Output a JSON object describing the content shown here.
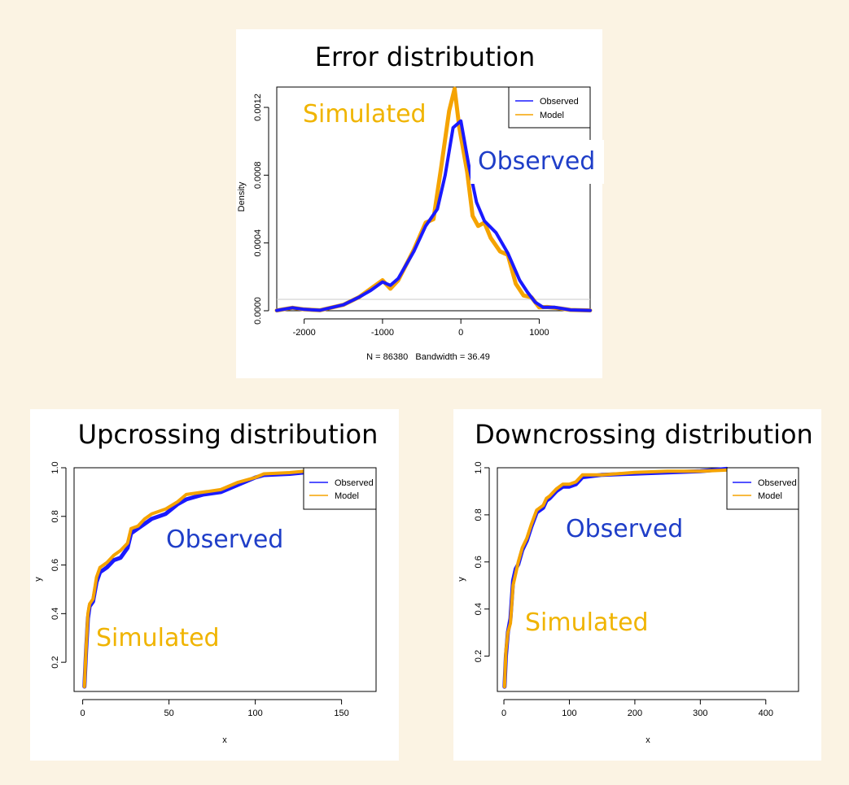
{
  "colors": {
    "background": "#fbf3e3",
    "observed": "#1a1aff",
    "model": "#f5a300",
    "annot_observed": "#1f3ec8",
    "annot_simulated": "#f0b400"
  },
  "chart_data": [
    {
      "type": "line",
      "title": "Error distribution",
      "xlabel": "N = 86380   Bandwidth = 36.49",
      "ylabel": "Density",
      "xlim": [
        -2350,
        1650
      ],
      "ylim": [
        0,
        0.00132
      ],
      "xticks": [
        -2000,
        -1000,
        0,
        1000
      ],
      "xtick_labels": [
        "-2000",
        "-1000",
        "0",
        "1000"
      ],
      "yticks": [
        0,
        0.0004,
        0.0008,
        0.0012
      ],
      "ytick_labels": [
        "0.0000",
        "0.0004",
        "0.0008",
        "0.0012"
      ],
      "legend": {
        "position": "top-right",
        "entries": [
          "Observed",
          "Model"
        ]
      },
      "annotations": {
        "simulated": "Simulated",
        "observed": "Observed"
      },
      "series": [
        {
          "name": "Observed",
          "x": [
            -2350,
            -2150,
            -2000,
            -1800,
            -1500,
            -1300,
            -1150,
            -1000,
            -900,
            -800,
            -600,
            -450,
            -300,
            -200,
            -100,
            0,
            100,
            200,
            300,
            450,
            600,
            750,
            850,
            950,
            1050,
            1200,
            1400,
            1650
          ],
          "y": [
            2e-06,
            1.8e-05,
            8e-06,
            3e-06,
            3.5e-05,
            8e-05,
            0.00012,
            0.00017,
            0.00015,
            0.00019,
            0.00035,
            0.0005,
            0.0006,
            0.0008,
            0.00108,
            0.00112,
            0.00086,
            0.00064,
            0.00053,
            0.00046,
            0.00034,
            0.00018,
            0.00011,
            5e-05,
            2e-05,
            2e-05,
            5e-06,
            2e-06
          ]
        },
        {
          "name": "Model",
          "x": [
            -2350,
            -2150,
            -2000,
            -1800,
            -1500,
            -1300,
            -1150,
            -1000,
            -900,
            -800,
            -600,
            -450,
            -350,
            -250,
            -150,
            -80,
            -20,
            80,
            150,
            220,
            300,
            380,
            500,
            600,
            700,
            800,
            900,
            1000,
            1100,
            1250,
            1400,
            1650
          ],
          "y": [
            2e-06,
            1.8e-05,
            8e-06,
            3e-06,
            3.5e-05,
            8e-05,
            0.00013,
            0.00018,
            0.00013,
            0.00018,
            0.00036,
            0.00052,
            0.00054,
            0.00085,
            0.00118,
            0.00131,
            0.00108,
            0.00082,
            0.00056,
            0.0005,
            0.00052,
            0.00043,
            0.00035,
            0.00033,
            0.00016,
            9e-05,
            8e-05,
            2e-05,
            2.2e-05,
            1.5e-05,
            5e-06,
            2e-06
          ]
        }
      ]
    },
    {
      "type": "line",
      "title": "Upcrossing distribution",
      "xlabel": "x",
      "ylabel": "y",
      "xlim": [
        -5,
        170
      ],
      "ylim": [
        0.08,
        1.0
      ],
      "xticks": [
        0,
        50,
        100,
        150
      ],
      "xtick_labels": [
        "0",
        "50",
        "100",
        "150"
      ],
      "yticks": [
        0.2,
        0.4,
        0.6,
        0.8,
        1.0
      ],
      "ytick_labels": [
        "0.2",
        "0.4",
        "0.6",
        "0.8",
        "1.0"
      ],
      "legend": {
        "position": "top-right",
        "entries": [
          "Observed",
          "Model"
        ]
      },
      "annotations": {
        "observed": "Observed",
        "simulated": "Simulated"
      },
      "series": [
        {
          "name": "Observed",
          "x": [
            1,
            2,
            3,
            4,
            6,
            8,
            10,
            14,
            18,
            22,
            26,
            28,
            32,
            36,
            40,
            48,
            55,
            60,
            70,
            80,
            90,
            100,
            105,
            120,
            135
          ],
          "y": [
            0.1,
            0.25,
            0.38,
            0.43,
            0.45,
            0.53,
            0.57,
            0.59,
            0.62,
            0.63,
            0.67,
            0.73,
            0.75,
            0.77,
            0.79,
            0.81,
            0.85,
            0.87,
            0.89,
            0.9,
            0.93,
            0.96,
            0.97,
            0.975,
            0.985
          ]
        },
        {
          "name": "Model",
          "x": [
            1,
            2,
            3,
            4,
            6,
            8,
            10,
            14,
            18,
            22,
            26,
            28,
            32,
            36,
            40,
            48,
            55,
            60,
            70,
            80,
            90,
            100,
            105,
            120,
            135
          ],
          "y": [
            0.1,
            0.26,
            0.4,
            0.44,
            0.46,
            0.55,
            0.59,
            0.61,
            0.64,
            0.66,
            0.69,
            0.75,
            0.76,
            0.79,
            0.81,
            0.83,
            0.86,
            0.89,
            0.9,
            0.91,
            0.94,
            0.96,
            0.975,
            0.98,
            0.99
          ]
        }
      ]
    },
    {
      "type": "line",
      "title": "Downcrossing distribution",
      "xlabel": "x",
      "ylabel": "y",
      "xlim": [
        -10,
        450
      ],
      "ylim": [
        0.05,
        1.0
      ],
      "xticks": [
        0,
        100,
        200,
        300,
        400
      ],
      "xtick_labels": [
        "0",
        "100",
        "200",
        "300",
        "400"
      ],
      "yticks": [
        0.2,
        0.4,
        0.6,
        0.8,
        1.0
      ],
      "ytick_labels": [
        "0.2",
        "0.4",
        "0.6",
        "0.8",
        "1.0"
      ],
      "legend": {
        "position": "top-right",
        "entries": [
          "Observed",
          "Model"
        ]
      },
      "annotations": {
        "observed": "Observed",
        "simulated": "Simulated"
      },
      "series": [
        {
          "name": "Observed",
          "x": [
            1,
            3,
            6,
            10,
            14,
            18,
            22,
            28,
            35,
            42,
            50,
            60,
            65,
            70,
            80,
            90,
            100,
            110,
            120,
            150,
            200,
            250,
            300,
            340
          ],
          "y": [
            0.07,
            0.2,
            0.3,
            0.36,
            0.52,
            0.57,
            0.59,
            0.65,
            0.69,
            0.75,
            0.81,
            0.83,
            0.86,
            0.87,
            0.9,
            0.92,
            0.92,
            0.93,
            0.96,
            0.97,
            0.975,
            0.98,
            0.985,
            0.995
          ]
        },
        {
          "name": "Model",
          "x": [
            1,
            3,
            6,
            10,
            14,
            18,
            22,
            28,
            35,
            42,
            50,
            60,
            65,
            70,
            80,
            90,
            100,
            110,
            120,
            150,
            200,
            250,
            300,
            340
          ],
          "y": [
            0.07,
            0.22,
            0.3,
            0.34,
            0.5,
            0.55,
            0.6,
            0.66,
            0.7,
            0.76,
            0.82,
            0.84,
            0.87,
            0.88,
            0.91,
            0.93,
            0.93,
            0.94,
            0.97,
            0.97,
            0.98,
            0.985,
            0.985,
            0.99
          ]
        }
      ]
    }
  ]
}
